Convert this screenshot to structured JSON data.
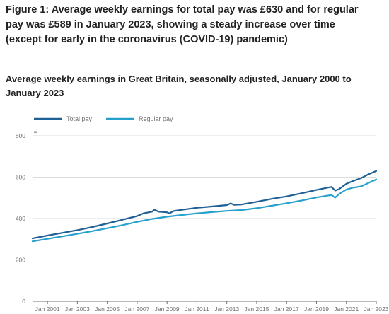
{
  "header": {
    "title": "Figure 1: Average weekly earnings for total pay was £630 and for regular pay was £589 in January 2023, showing a steady increase over time (except for early in the coronavirus (COVID-19) pandemic)",
    "subtitle": "Average weekly earnings in Great Britain, seasonally adjusted, January 2000 to January 2023"
  },
  "colors": {
    "total_pay": "#206095",
    "regular_pay": "#27a0cc",
    "grid": "#dcdcdc",
    "axis": "#707070"
  },
  "chart_data": {
    "type": "line",
    "title": "Average weekly earnings in Great Britain, seasonally adjusted, January 2000 to January 2023",
    "ylabel": "£",
    "xlabel": "",
    "ylim": [
      0,
      800
    ],
    "xlim": [
      "2000-01",
      "2023-01"
    ],
    "yticks": [
      0,
      200,
      400,
      600,
      800
    ],
    "xticks": [
      "Jan 2001",
      "Jan 2003",
      "Jan 2005",
      "Jan 2007",
      "Jan 2009",
      "Jan 2011",
      "Jan 2013",
      "Jan 2015",
      "Jan 2017",
      "Jan 2019",
      "Jan 2021",
      "Jan 2023"
    ],
    "grid": true,
    "legend": "top-left",
    "series": [
      {
        "name": "Total pay",
        "x": [
          "2000-01",
          "2001-01",
          "2002-01",
          "2003-01",
          "2004-01",
          "2005-01",
          "2006-01",
          "2007-01",
          "2007-06",
          "2008-01",
          "2008-03",
          "2008-06",
          "2009-01",
          "2009-03",
          "2009-06",
          "2010-01",
          "2011-01",
          "2012-01",
          "2013-01",
          "2013-04",
          "2013-07",
          "2014-01",
          "2015-01",
          "2016-01",
          "2017-01",
          "2018-01",
          "2019-01",
          "2020-01",
          "2020-04",
          "2020-07",
          "2021-01",
          "2021-06",
          "2022-01",
          "2022-06",
          "2023-01"
        ],
        "values": [
          304,
          318,
          331,
          344,
          359,
          376,
          394,
          412,
          425,
          433,
          443,
          433,
          430,
          425,
          436,
          442,
          452,
          458,
          465,
          473,
          466,
          468,
          481,
          495,
          507,
          522,
          538,
          553,
          535,
          542,
          568,
          581,
          596,
          612,
          630
        ]
      },
      {
        "name": "Regular pay",
        "x": [
          "2000-01",
          "2001-01",
          "2002-01",
          "2003-01",
          "2004-01",
          "2005-01",
          "2006-01",
          "2007-01",
          "2008-01",
          "2009-01",
          "2010-01",
          "2011-01",
          "2012-01",
          "2013-01",
          "2014-01",
          "2015-01",
          "2016-01",
          "2017-01",
          "2018-01",
          "2019-01",
          "2020-01",
          "2020-04",
          "2020-07",
          "2021-01",
          "2021-06",
          "2022-01",
          "2022-06",
          "2023-01"
        ],
        "values": [
          290,
          302,
          314,
          326,
          339,
          353,
          368,
          384,
          398,
          409,
          417,
          425,
          431,
          437,
          441,
          450,
          462,
          474,
          487,
          502,
          514,
          501,
          518,
          540,
          549,
          556,
          570,
          589
        ]
      }
    ]
  }
}
